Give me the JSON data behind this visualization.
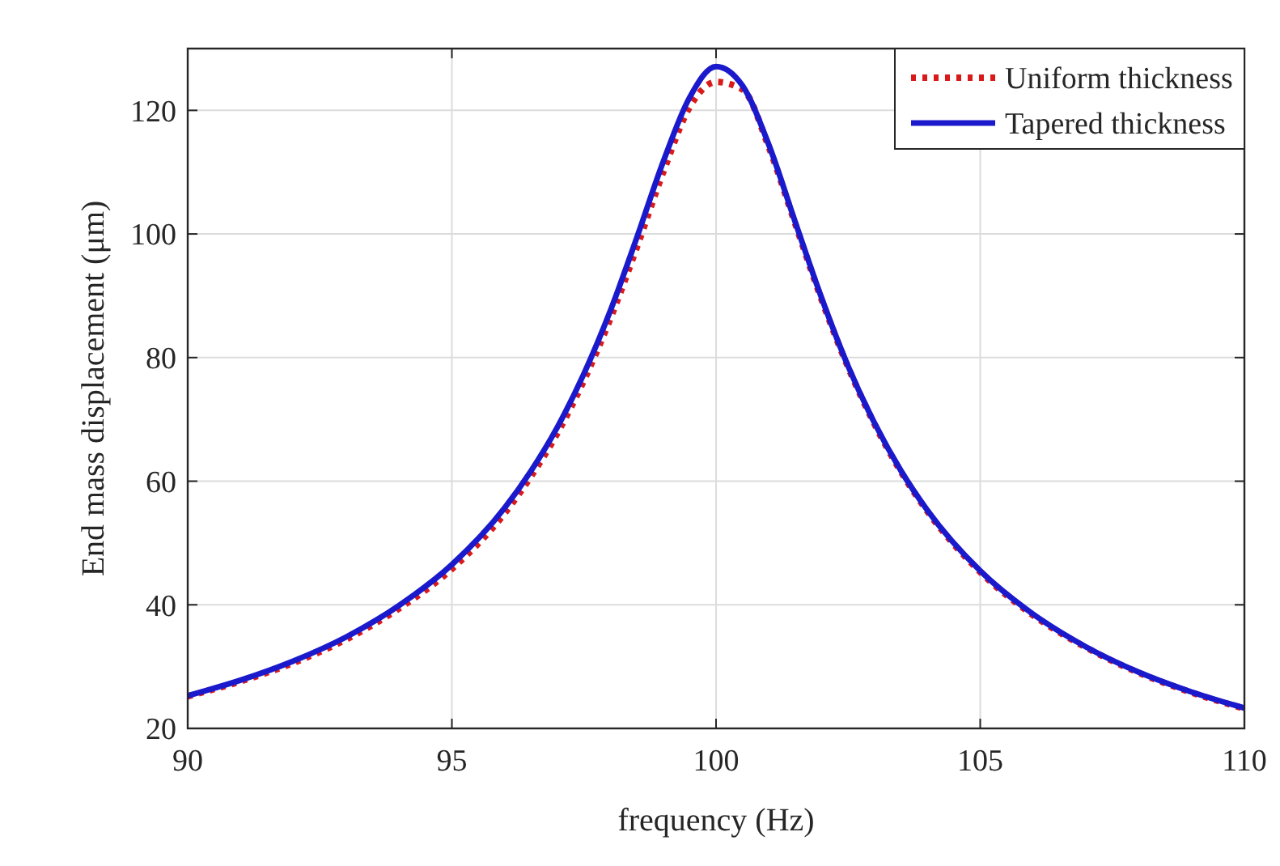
{
  "chart_data": {
    "type": "line",
    "xlabel": "frequency (Hz)",
    "ylabel": "End mass displacement (μm)",
    "x": [
      90,
      91,
      92,
      93,
      94,
      95,
      96,
      96.5,
      97,
      97.5,
      98,
      98.5,
      99,
      99.5,
      100,
      100.5,
      101,
      101.5,
      102,
      102.5,
      103,
      103.5,
      104,
      105,
      106,
      107,
      108,
      109,
      110
    ],
    "series": [
      {
        "name": "Uniform thickness",
        "color": "#d91a1a",
        "line_style": "dotted",
        "values": [
          25.2,
          27.6,
          30.6,
          34.4,
          39.4,
          45.8,
          54.8,
          60.8,
          67.8,
          76.3,
          86.3,
          97.8,
          110,
          120.5,
          124.6,
          123.4,
          114,
          101.6,
          89.3,
          78.4,
          69.2,
          61.5,
          55.1,
          45.3,
          38.3,
          33.1,
          29,
          25.8,
          23.2
        ]
      },
      {
        "name": "Tapered thickness",
        "color": "#1a1acc",
        "line_style": "solid",
        "values": [
          25.3,
          27.8,
          30.9,
          34.8,
          39.9,
          46.5,
          55.7,
          61.7,
          68.8,
          77.4,
          87.6,
          99.4,
          111.7,
          122.1,
          127.1,
          124,
          114.4,
          101.9,
          89.6,
          78.6,
          69.4,
          61.7,
          55.3,
          45.5,
          38.5,
          33.2,
          29.1,
          25.9,
          23.3
        ]
      }
    ],
    "xlim": [
      90,
      110
    ],
    "xticks": [
      90,
      95,
      100,
      105,
      110
    ],
    "ylim": [
      20,
      130
    ],
    "yticks": [
      20,
      40,
      60,
      80,
      100,
      120
    ],
    "grid": true,
    "legend": "top right"
  }
}
